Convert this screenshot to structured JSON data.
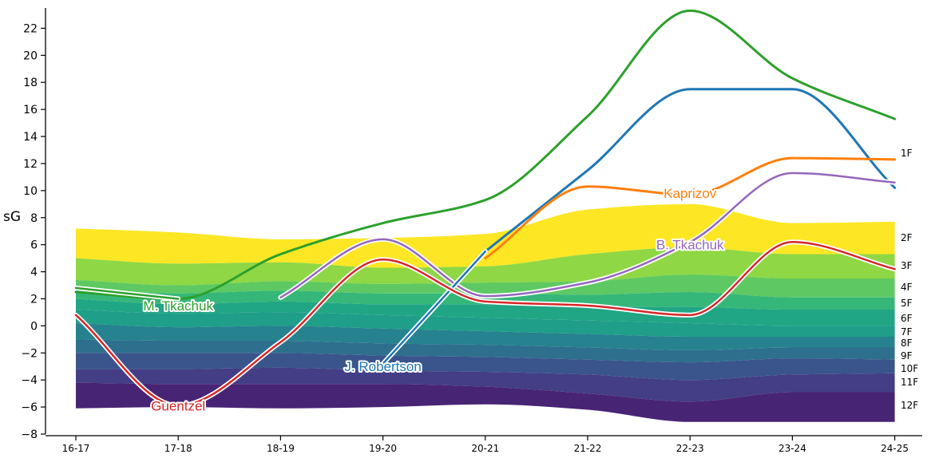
{
  "chart_data": {
    "type": "area",
    "xlabel": "",
    "ylabel": "sG",
    "ylim": [
      -8,
      23.5
    ],
    "yticks": [
      -8,
      -6,
      -4,
      -2,
      0,
      2,
      4,
      6,
      8,
      10,
      12,
      14,
      16,
      18,
      20,
      22
    ],
    "categories": [
      "16-17",
      "17-18",
      "18-19",
      "19-20",
      "20-21",
      "21-22",
      "22-23",
      "23-24",
      "24-25"
    ],
    "grid": false,
    "bands": {
      "labels": [
        "1F",
        "2F",
        "3F",
        "4F",
        "5F",
        "6F",
        "7F",
        "8F",
        "9F",
        "10F",
        "11F",
        "12F"
      ],
      "colors": [
        "#fde725",
        "#8fd744",
        "#5ec962",
        "#35b779",
        "#21a685",
        "#1f9e89",
        "#26828e",
        "#2e6f8e",
        "#3a548c",
        "#433e85",
        "#482475",
        "#440154"
      ],
      "boundaries": [
        [
          7.2,
          6.9,
          6.4,
          6.5,
          6.8,
          8.6,
          9.0,
          7.6,
          7.7
        ],
        [
          5.0,
          4.6,
          4.7,
          4.3,
          4.4,
          5.3,
          5.8,
          5.3,
          5.3
        ],
        [
          3.4,
          3.0,
          3.3,
          3.1,
          3.2,
          3.3,
          3.8,
          3.5,
          3.5
        ],
        [
          2.7,
          2.4,
          2.6,
          2.4,
          2.4,
          2.3,
          2.5,
          2.1,
          2.1
        ],
        [
          2.0,
          1.6,
          1.8,
          1.6,
          1.6,
          1.4,
          1.4,
          1.2,
          1.2
        ],
        [
          1.2,
          0.9,
          1.0,
          0.8,
          0.6,
          0.4,
          0.2,
          0.0,
          0.0
        ],
        [
          0.2,
          -0.1,
          0.0,
          -0.2,
          -0.4,
          -0.6,
          -0.8,
          -0.8,
          -0.8
        ],
        [
          -1.0,
          -1.1,
          -1.1,
          -1.3,
          -1.4,
          -1.6,
          -1.8,
          -1.6,
          -1.6
        ],
        [
          -2.0,
          -2.0,
          -2.0,
          -2.2,
          -2.3,
          -2.5,
          -2.7,
          -2.4,
          -2.5
        ],
        [
          -3.2,
          -3.2,
          -3.1,
          -3.3,
          -3.4,
          -3.6,
          -4.0,
          -3.6,
          -3.5
        ],
        [
          -4.2,
          -4.3,
          -4.3,
          -4.3,
          -4.5,
          -5.0,
          -5.6,
          -4.9,
          -4.9
        ],
        [
          -6.1,
          -6.0,
          -6.1,
          -6.0,
          -5.8,
          -6.2,
          -7.1,
          -7.1,
          -7.1
        ]
      ]
    },
    "series": [
      {
        "name": "",
        "color": "#2ca02c",
        "x": [
          "16-17",
          "17-18",
          "18-19",
          "19-20",
          "20-21",
          "21-22",
          "22-23",
          "23-24",
          "24-25"
        ],
        "values": [
          2.5,
          2.0,
          5.3,
          7.6,
          9.3,
          15.5,
          23.3,
          18.3,
          15.3
        ],
        "outline": false
      },
      {
        "name": "",
        "color": "#1f77b4",
        "x": [
          "20-21",
          "21-22",
          "22-23",
          "23-24",
          "24-25"
        ],
        "values": [
          5.5,
          11.5,
          17.5,
          17.5,
          10.2
        ],
        "outline": false
      },
      {
        "name": "Kaprizov",
        "color": "#ff7f0e",
        "x": [
          "20-21",
          "21-22",
          "22-23",
          "23-24",
          "24-25"
        ],
        "values": [
          5.0,
          10.3,
          9.7,
          12.4,
          12.3
        ],
        "outline": false
      },
      {
        "name": "B. Tkachuk",
        "color": "#9467bd",
        "x": [
          "18-19",
          "19-20",
          "20-21",
          "21-22",
          "22-23",
          "23-24",
          "24-25"
        ],
        "values": [
          2.1,
          6.4,
          2.2,
          3.2,
          6.2,
          11.3,
          10.6
        ],
        "outline": true
      },
      {
        "name": "M. Tkachuk",
        "color": "#2ca02c",
        "x": [
          "16-17",
          "17-18"
        ],
        "values": [
          2.8,
          2.0
        ],
        "outline": true
      },
      {
        "name": "J. Robertson",
        "color": "#1f77b4",
        "x": [
          "19-20",
          "20-21"
        ],
        "values": [
          -2.8,
          5.5
        ],
        "outline": true
      },
      {
        "name": "Guentzel",
        "color": "#d62728",
        "x": [
          "16-17",
          "17-18",
          "18-19",
          "19-20",
          "20-21",
          "21-22",
          "22-23",
          "23-24",
          "24-25"
        ],
        "values": [
          0.8,
          -5.9,
          -1.2,
          4.9,
          1.8,
          1.5,
          0.8,
          6.2,
          4.2
        ],
        "outline": true
      }
    ],
    "annotations": [
      {
        "text": "M. Tkachuk",
        "color": "#2ca02c",
        "x": "17-18",
        "y": 1.5
      },
      {
        "text": "Guentzel",
        "color": "#d62728",
        "x": "17-18",
        "y": -5.9
      },
      {
        "text": "J. Robertson",
        "color": "#1f77b4",
        "x": "19-20",
        "y": -3.0
      },
      {
        "text": "Kaprizov",
        "color": "#ff7f0e",
        "x": "22-23",
        "y": 9.8
      },
      {
        "text": "B. Tkachuk",
        "color": "#9467bd",
        "x": "22-23",
        "y": 6.0
      }
    ]
  }
}
